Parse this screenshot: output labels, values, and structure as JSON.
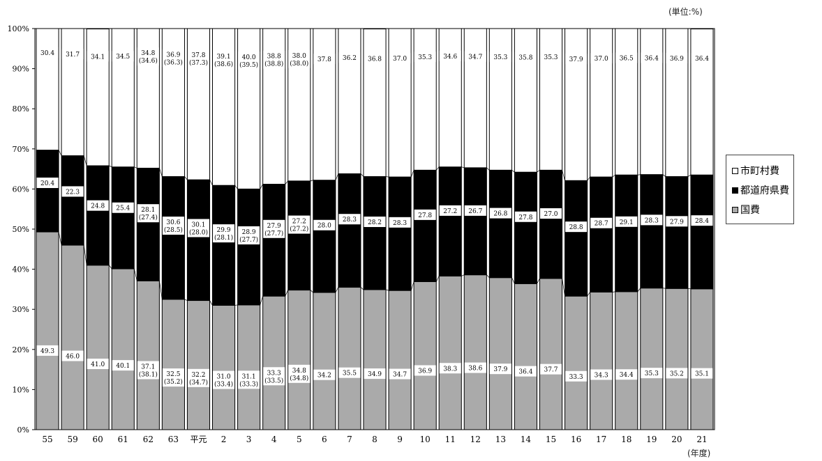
{
  "unit_label": "(単位:%)",
  "x_unit_label": "(年度)",
  "colors": {
    "national": "#aaaaaa",
    "prefecture": "#000000",
    "municipality": "#ffffff"
  },
  "chart_data": {
    "type": "bar",
    "stacked": true,
    "categories": [
      "55",
      "59",
      "60",
      "61",
      "62",
      "63",
      "平元",
      "2",
      "3",
      "4",
      "5",
      "6",
      "7",
      "8",
      "9",
      "10",
      "11",
      "12",
      "13",
      "14",
      "15",
      "16",
      "17",
      "18",
      "19",
      "20",
      "21"
    ],
    "ylim": [
      0,
      100
    ],
    "y_ticks": [
      "0%",
      "10%",
      "20%",
      "30%",
      "40%",
      "50%",
      "60%",
      "70%",
      "80%",
      "90%",
      "100%"
    ],
    "legend_position": "right",
    "series": [
      {
        "key": "national",
        "name": "国費",
        "values": [
          49.3,
          46.0,
          41.0,
          40.1,
          37.1,
          32.5,
          32.2,
          31.0,
          31.1,
          33.3,
          34.8,
          34.2,
          35.5,
          34.9,
          34.7,
          36.9,
          38.3,
          38.6,
          37.9,
          36.4,
          37.7,
          33.3,
          34.3,
          34.4,
          35.3,
          35.2,
          35.1
        ],
        "paren": [
          null,
          null,
          null,
          null,
          "(38.1)",
          "(35.2)",
          "(34.7)",
          "(33.4)",
          "(33.3)",
          "(33.5)",
          "(34.8)",
          null,
          null,
          null,
          null,
          null,
          null,
          null,
          null,
          null,
          null,
          null,
          null,
          null,
          null,
          null,
          null
        ]
      },
      {
        "key": "prefecture",
        "name": "都道府県費",
        "values": [
          20.4,
          22.3,
          24.8,
          25.4,
          28.1,
          30.6,
          30.1,
          29.9,
          28.9,
          27.9,
          27.2,
          28.0,
          28.3,
          28.2,
          28.3,
          27.8,
          27.2,
          26.7,
          26.8,
          27.8,
          27.0,
          28.8,
          28.7,
          29.1,
          28.3,
          27.9,
          28.4
        ],
        "paren": [
          null,
          null,
          null,
          null,
          "(27.4)",
          "(28.5)",
          "(28.0)",
          "(28.1)",
          "(27.7)",
          "(27.7)",
          "(27.2)",
          null,
          null,
          null,
          null,
          null,
          null,
          null,
          null,
          null,
          null,
          null,
          null,
          null,
          null,
          null,
          null
        ]
      },
      {
        "key": "municipality",
        "name": "市町村費",
        "values": [
          30.4,
          31.7,
          34.1,
          34.5,
          34.8,
          36.9,
          37.8,
          39.1,
          40.0,
          38.8,
          38.0,
          37.8,
          36.2,
          36.8,
          37.0,
          35.3,
          34.6,
          34.7,
          35.3,
          35.8,
          35.3,
          37.9,
          37.0,
          36.5,
          36.4,
          36.9,
          36.4
        ],
        "paren": [
          null,
          null,
          null,
          null,
          "(34.6)",
          "(36.3)",
          "(37.3)",
          "(38.6)",
          "(39.5)",
          "(38.8)",
          "(38.0)",
          null,
          null,
          null,
          null,
          null,
          null,
          null,
          null,
          null,
          null,
          null,
          null,
          null,
          null,
          null,
          null
        ]
      }
    ]
  }
}
